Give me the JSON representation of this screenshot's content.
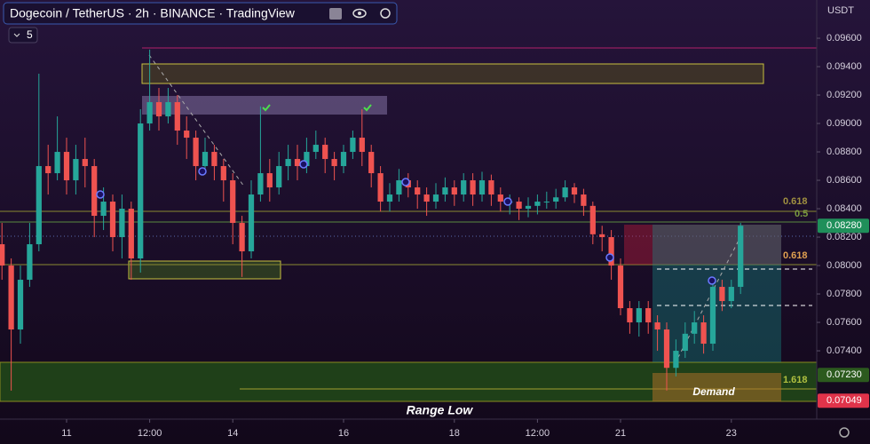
{
  "header": {
    "symbol": "Dogecoin / TetherUS · 2h · BINANCE · TradingView",
    "indicator_count": "5"
  },
  "chart_data": {
    "type": "candlestick",
    "title": "Dogecoin / TetherUS · 2h · BINANCE · TradingView",
    "y_unit": "USDT",
    "up_color": "#26a69a",
    "down_color": "#ef5350",
    "x": [
      -28,
      -24,
      -20,
      -16,
      -12,
      -8,
      -4,
      0,
      4,
      8,
      12,
      16,
      20,
      24,
      28,
      32,
      36,
      40,
      44,
      48,
      52,
      56,
      60,
      64,
      68,
      72,
      76,
      80,
      84,
      88,
      92,
      96,
      100,
      104,
      108,
      112,
      116,
      120,
      124,
      128,
      132,
      136,
      140,
      144,
      148,
      152,
      156,
      160,
      164,
      168,
      172,
      176,
      180,
      184,
      188,
      192,
      196,
      200,
      204,
      208,
      212,
      216,
      220,
      224,
      228,
      232,
      236,
      240,
      244,
      248,
      252,
      256,
      260,
      264,
      268,
      272,
      276,
      280,
      284,
      288,
      292
    ],
    "open": [
      0.0815,
      0.08,
      0.0755,
      0.079,
      0.0815,
      0.087,
      0.0865,
      0.088,
      0.086,
      0.0875,
      0.087,
      0.0835,
      0.0845,
      0.082,
      0.084,
      0.0805,
      0.09,
      0.0915,
      0.0905,
      0.0915,
      0.0895,
      0.089,
      0.087,
      0.088,
      0.087,
      0.086,
      0.083,
      0.081,
      0.085,
      0.0865,
      0.0855,
      0.087,
      0.0875,
      0.087,
      0.088,
      0.0885,
      0.0875,
      0.087,
      0.088,
      0.089,
      0.088,
      0.0865,
      0.0845,
      0.085,
      0.086,
      0.0855,
      0.085,
      0.0845,
      0.085,
      0.0855,
      0.085,
      0.086,
      0.085,
      0.086,
      0.085,
      0.0845,
      0.0845,
      0.084,
      0.0842,
      0.0845,
      0.0845,
      0.0848,
      0.0855,
      0.085,
      0.0842,
      0.0822,
      0.082,
      0.08,
      0.077,
      0.076,
      0.077,
      0.076,
      0.0755,
      0.0728,
      0.074,
      0.0752,
      0.076,
      0.0745,
      0.0785,
      0.0775,
      0.0785
    ],
    "high": [
      0.083,
      0.0805,
      0.08,
      0.083,
      0.0935,
      0.0885,
      0.0905,
      0.089,
      0.0885,
      0.089,
      0.0875,
      0.0855,
      0.085,
      0.085,
      0.0845,
      0.091,
      0.0952,
      0.0925,
      0.0925,
      0.092,
      0.0905,
      0.0895,
      0.089,
      0.0885,
      0.0875,
      0.0865,
      0.0835,
      0.086,
      0.0912,
      0.0875,
      0.088,
      0.0885,
      0.0885,
      0.089,
      0.0895,
      0.089,
      0.088,
      0.0885,
      0.0895,
      0.091,
      0.0885,
      0.087,
      0.0858,
      0.0868,
      0.0865,
      0.086,
      0.0855,
      0.0858,
      0.0862,
      0.086,
      0.0865,
      0.0865,
      0.0866,
      0.0864,
      0.0855,
      0.085,
      0.0848,
      0.0848,
      0.085,
      0.0852,
      0.0854,
      0.086,
      0.0858,
      0.0854,
      0.0845,
      0.0828,
      0.0825,
      0.0805,
      0.0775,
      0.0775,
      0.0775,
      0.0765,
      0.076,
      0.0748,
      0.076,
      0.0768,
      0.0765,
      0.0792,
      0.079,
      0.079,
      0.083
    ],
    "low": [
      0.079,
      0.0712,
      0.0745,
      0.0785,
      0.081,
      0.085,
      0.086,
      0.085,
      0.085,
      0.0855,
      0.082,
      0.0825,
      0.081,
      0.0805,
      0.079,
      0.0795,
      0.0895,
      0.0895,
      0.09,
      0.0885,
      0.0875,
      0.086,
      0.0865,
      0.086,
      0.0845,
      0.0815,
      0.0792,
      0.0805,
      0.0845,
      0.0845,
      0.085,
      0.086,
      0.086,
      0.0865,
      0.0875,
      0.0865,
      0.086,
      0.0865,
      0.0875,
      0.087,
      0.0855,
      0.0838,
      0.0838,
      0.0845,
      0.0848,
      0.084,
      0.0835,
      0.084,
      0.0845,
      0.0842,
      0.0845,
      0.0842,
      0.0845,
      0.0842,
      0.0838,
      0.0836,
      0.0832,
      0.0834,
      0.0836,
      0.084,
      0.084,
      0.0845,
      0.0844,
      0.0835,
      0.0815,
      0.081,
      0.079,
      0.0765,
      0.0752,
      0.075,
      0.0752,
      0.074,
      0.0712,
      0.0722,
      0.0735,
      0.0745,
      0.0738,
      0.074,
      0.0768,
      0.077,
      0.078
    ],
    "close": [
      0.08,
      0.0755,
      0.079,
      0.0815,
      0.087,
      0.0865,
      0.088,
      0.086,
      0.0875,
      0.087,
      0.0835,
      0.0845,
      0.082,
      0.084,
      0.0805,
      0.09,
      0.0915,
      0.0905,
      0.0915,
      0.0895,
      0.089,
      0.087,
      0.088,
      0.087,
      0.086,
      0.083,
      0.081,
      0.085,
      0.0865,
      0.0855,
      0.087,
      0.0875,
      0.087,
      0.088,
      0.0885,
      0.0875,
      0.087,
      0.088,
      0.089,
      0.088,
      0.0865,
      0.0845,
      0.085,
      0.086,
      0.0855,
      0.085,
      0.0845,
      0.085,
      0.0855,
      0.085,
      0.086,
      0.085,
      0.086,
      0.085,
      0.0845,
      0.0845,
      0.084,
      0.0842,
      0.0845,
      0.0845,
      0.0848,
      0.0855,
      0.085,
      0.0842,
      0.0822,
      0.082,
      0.08,
      0.077,
      0.076,
      0.077,
      0.076,
      0.0755,
      0.0728,
      0.074,
      0.0752,
      0.076,
      0.0745,
      0.0785,
      0.0775,
      0.0785,
      0.0828
    ],
    "xlim": [
      -28.85,
      325
    ],
    "xticks": [
      {
        "value": 0,
        "label": "11"
      },
      {
        "value": 36,
        "label": "12:00"
      },
      {
        "value": 72,
        "label": "14"
      },
      {
        "value": 120,
        "label": "16"
      },
      {
        "value": 168,
        "label": "18"
      },
      {
        "value": 204,
        "label": "12:00"
      },
      {
        "value": 240,
        "label": "21"
      },
      {
        "value": 288,
        "label": "23"
      }
    ],
    "ylim": [
      0.06919,
      0.09869
    ],
    "yticks": [
      {
        "value": 0.074,
        "label": "0.07400"
      },
      {
        "value": 0.076,
        "label": "0.07600"
      },
      {
        "value": 0.078,
        "label": "0.07800"
      },
      {
        "value": 0.08,
        "label": "0.08000"
      },
      {
        "value": 0.082,
        "label": "0.08200"
      },
      {
        "value": 0.084,
        "label": "0.08400"
      },
      {
        "value": 0.086,
        "label": "0.08600"
      },
      {
        "value": 0.088,
        "label": "0.08800"
      },
      {
        "value": 0.09,
        "label": "0.09000"
      },
      {
        "value": 0.092,
        "label": "0.09200"
      },
      {
        "value": 0.094,
        "label": "0.09400"
      },
      {
        "value": 0.096,
        "label": "0.09600"
      }
    ],
    "price_tags": [
      {
        "value": 0.0828,
        "label": "0.08280",
        "color": "#1f8f5a"
      },
      {
        "value": 0.0723,
        "label": "0.07230",
        "color": "#2c5a1e"
      },
      {
        "value": 0.07049,
        "label": "0.07049",
        "color": "#e0334a"
      }
    ],
    "annotations": {
      "fib_618_top": "0.618",
      "fib_5": "0.5",
      "fib_618": "0.618",
      "fib_1618": "1.618",
      "zone": "Demand",
      "range": "Range Low"
    }
  }
}
